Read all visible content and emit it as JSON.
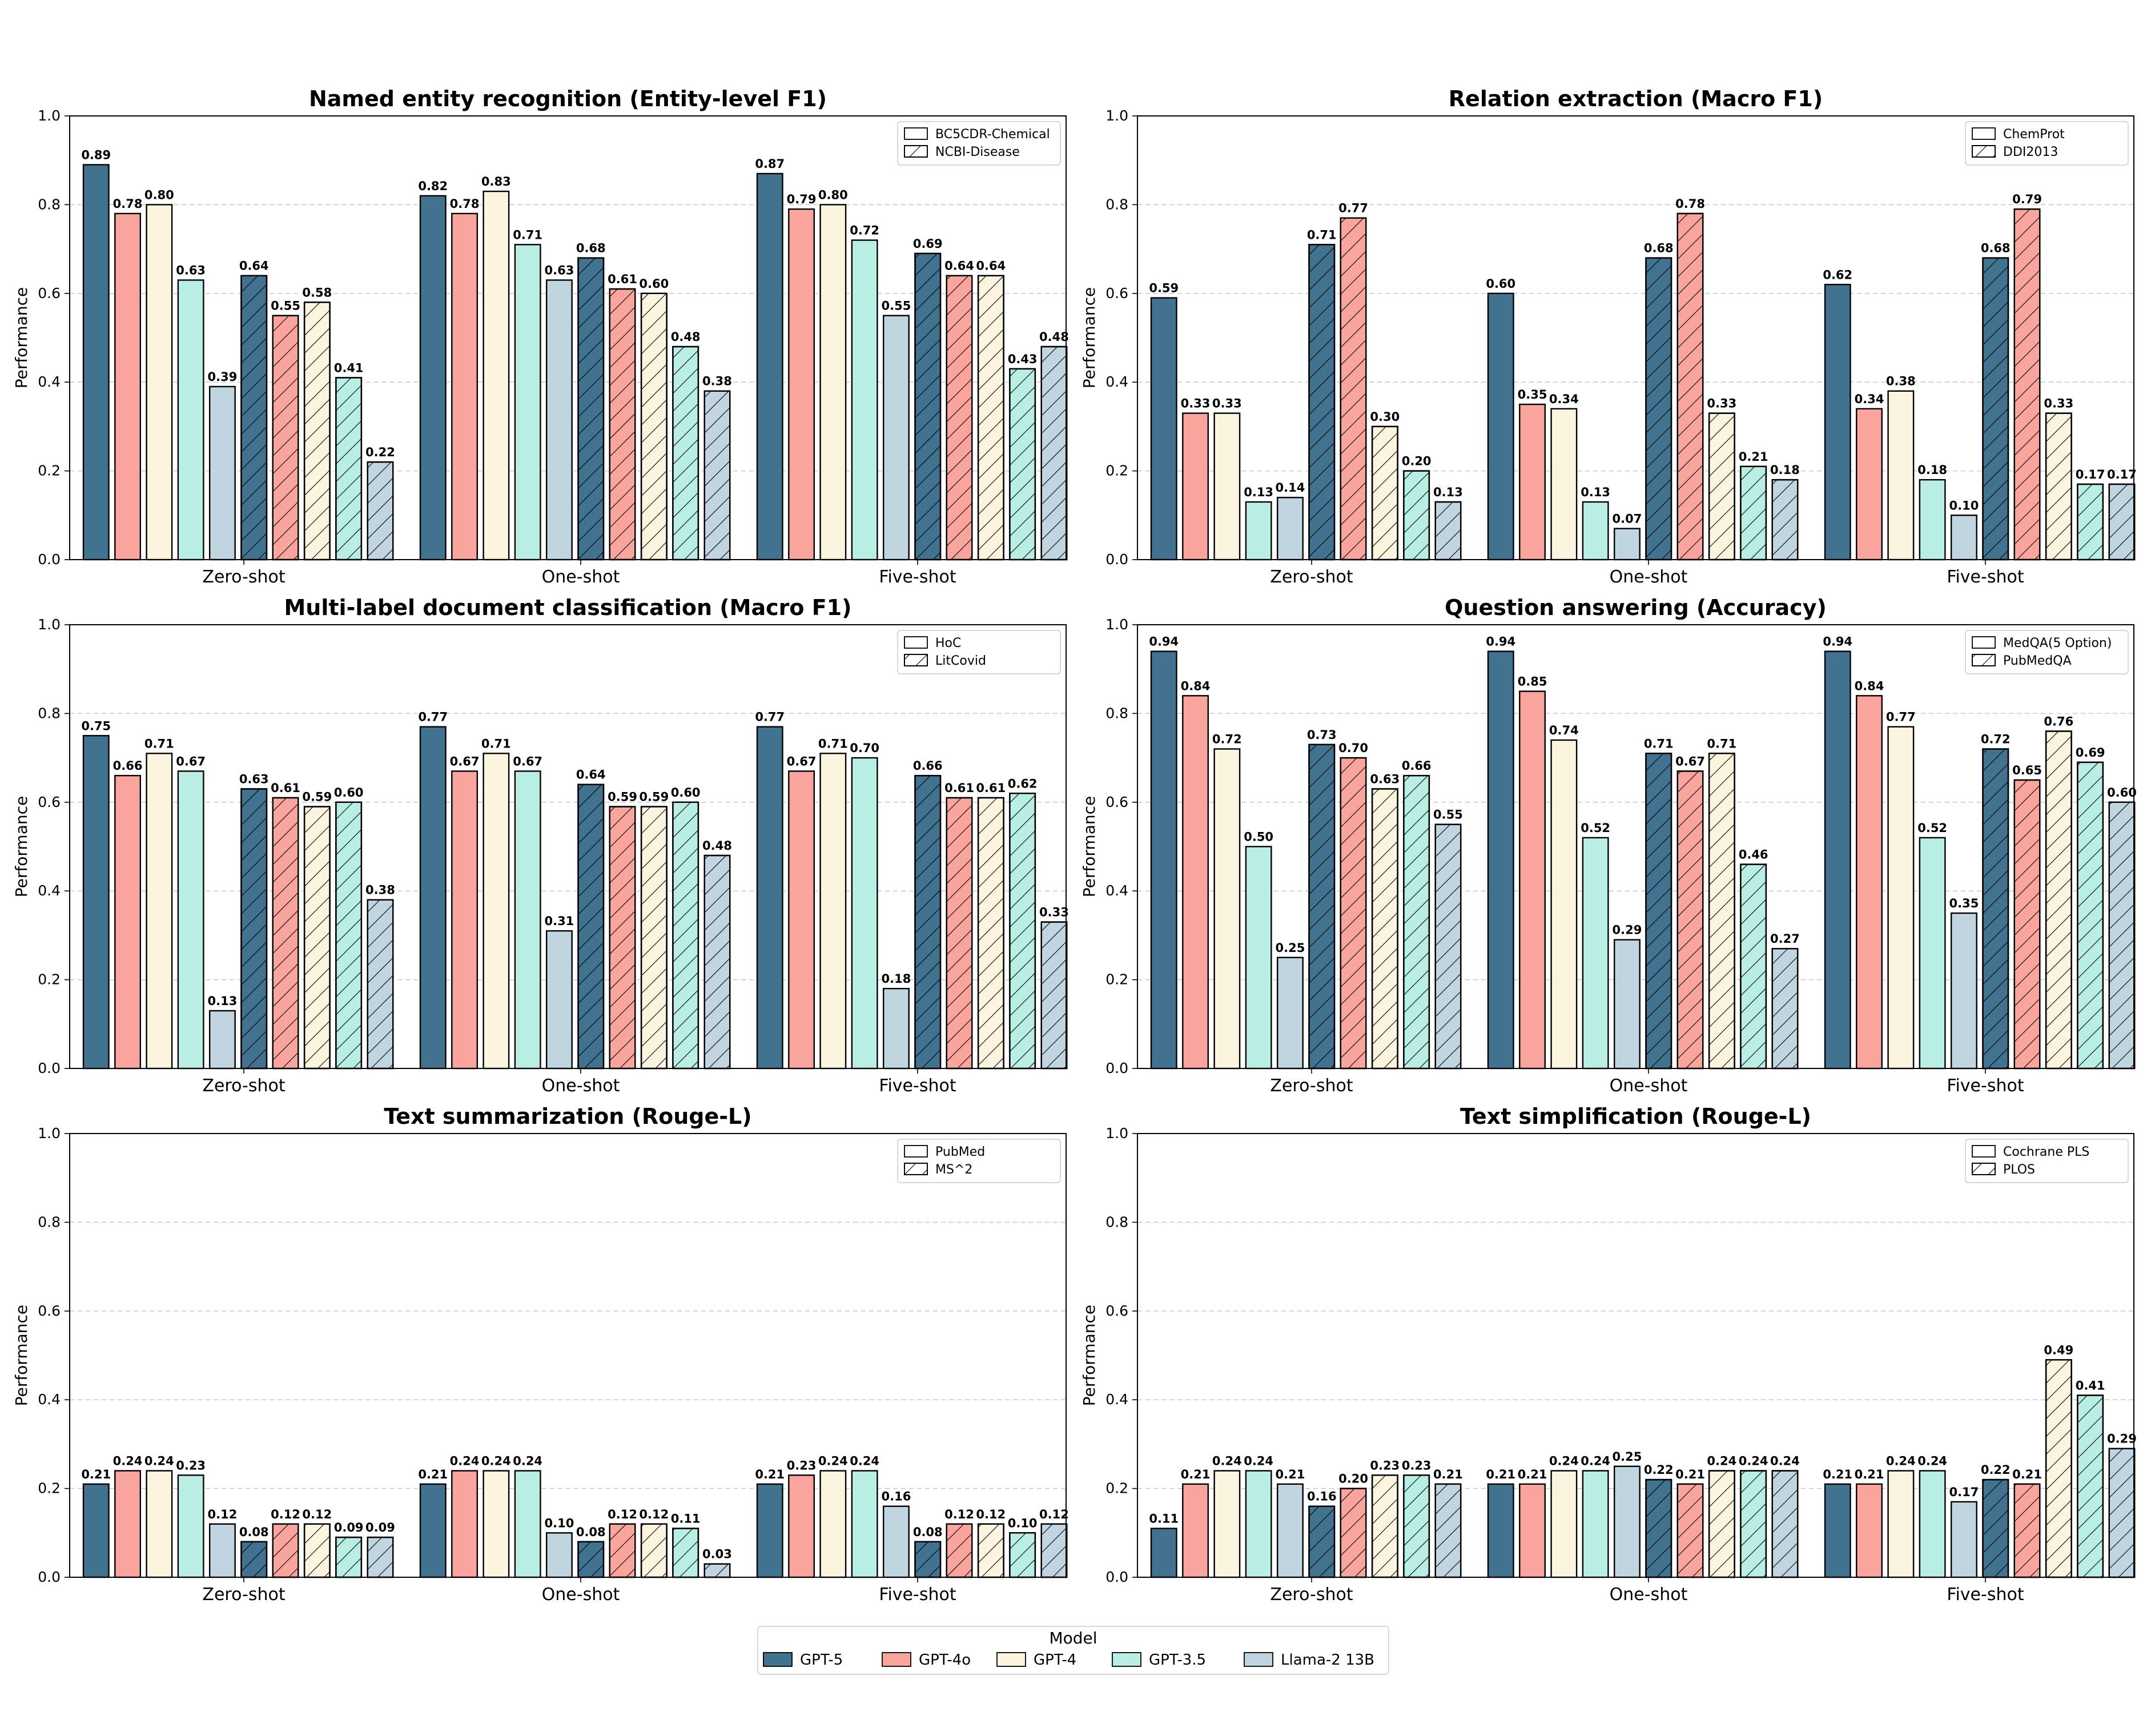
{
  "models": [
    {
      "name": "GPT-5",
      "color": "#41728f"
    },
    {
      "name": "GPT-4o",
      "color": "#f9a59d"
    },
    {
      "name": "GPT-4",
      "color": "#fbf4de"
    },
    {
      "name": "GPT-3.5",
      "color": "#b9eee4"
    },
    {
      "name": "Llama-2 13B",
      "color": "#c0d5e0"
    }
  ],
  "legend": {
    "title": "Model"
  },
  "chart_data": [
    {
      "type": "bar",
      "title": "Named entity recognition (Entity-level F1)",
      "ylabel": "Performance",
      "ylim": [
        0,
        1.0
      ],
      "yticks": [
        "0.0",
        "0.2",
        "0.4",
        "0.6",
        "0.8",
        "1.0"
      ],
      "categories": [
        "Zero-shot",
        "One-shot",
        "Five-shot"
      ],
      "datasets": [
        "BC5CDR-Chemical",
        "NCBI-Disease"
      ],
      "values": [
        [
          [
            0.89,
            0.78,
            0.8,
            0.63,
            0.39
          ],
          [
            0.64,
            0.55,
            0.58,
            0.41,
            0.22
          ]
        ],
        [
          [
            0.82,
            0.78,
            0.83,
            0.71,
            0.63
          ],
          [
            0.68,
            0.61,
            0.6,
            0.48,
            0.38
          ]
        ],
        [
          [
            0.87,
            0.79,
            0.8,
            0.72,
            0.55
          ],
          [
            0.69,
            0.64,
            0.64,
            0.43,
            0.48
          ]
        ]
      ],
      "labels": [
        [
          [
            "0.89",
            "0.78",
            "0.80",
            "0.63",
            "0.39"
          ],
          [
            "0.64",
            "0.55",
            "0.58",
            "0.41",
            "0.22"
          ]
        ],
        [
          [
            "0.82",
            "0.78",
            "0.83",
            "0.71",
            "0.63"
          ],
          [
            "0.68",
            "0.61",
            "0.60",
            "0.48",
            "0.38"
          ]
        ],
        [
          [
            "0.87",
            "0.79",
            "0.80",
            "0.72",
            "0.55"
          ],
          [
            "0.69",
            "0.64",
            "0.64",
            "0.43",
            "0.48"
          ]
        ]
      ]
    },
    {
      "type": "bar",
      "title": "Relation extraction (Macro F1)",
      "ylabel": "Performance",
      "ylim": [
        0,
        1.0
      ],
      "yticks": [
        "0.0",
        "0.2",
        "0.4",
        "0.6",
        "0.8",
        "1.0"
      ],
      "categories": [
        "Zero-shot",
        "One-shot",
        "Five-shot"
      ],
      "datasets": [
        "ChemProt",
        "DDI2013"
      ],
      "values": [
        [
          [
            0.59,
            0.33,
            0.33,
            0.13,
            0.14
          ],
          [
            0.71,
            0.77,
            0.3,
            0.2,
            0.13
          ]
        ],
        [
          [
            0.6,
            0.35,
            0.34,
            0.13,
            0.07
          ],
          [
            0.68,
            0.78,
            0.33,
            0.21,
            0.18
          ]
        ],
        [
          [
            0.62,
            0.34,
            0.38,
            0.18,
            0.1
          ],
          [
            0.68,
            0.79,
            0.33,
            0.17,
            0.17
          ]
        ]
      ],
      "labels": [
        [
          [
            "0.59",
            "0.33",
            "0.33",
            "0.13",
            "0.14"
          ],
          [
            "0.71",
            "0.77",
            "0.30",
            "0.20",
            "0.13"
          ]
        ],
        [
          [
            "0.60",
            "0.35",
            "0.34",
            "0.13",
            "0.07"
          ],
          [
            "0.68",
            "0.78",
            "0.33",
            "0.21",
            "0.18"
          ]
        ],
        [
          [
            "0.62",
            "0.34",
            "0.38",
            "0.18",
            "0.10"
          ],
          [
            "0.68",
            "0.79",
            "0.33",
            "0.17",
            "0.17"
          ]
        ]
      ]
    },
    {
      "type": "bar",
      "title": "Multi-label document classification (Macro F1)",
      "ylabel": "Performance",
      "ylim": [
        0,
        1.0
      ],
      "yticks": [
        "0.0",
        "0.2",
        "0.4",
        "0.6",
        "0.8",
        "1.0"
      ],
      "categories": [
        "Zero-shot",
        "One-shot",
        "Five-shot"
      ],
      "datasets": [
        "HoC",
        "LitCovid"
      ],
      "values": [
        [
          [
            0.75,
            0.66,
            0.71,
            0.67,
            0.13
          ],
          [
            0.63,
            0.61,
            0.59,
            0.6,
            0.38
          ]
        ],
        [
          [
            0.77,
            0.67,
            0.71,
            0.67,
            0.31
          ],
          [
            0.64,
            0.59,
            0.59,
            0.6,
            0.48
          ]
        ],
        [
          [
            0.77,
            0.67,
            0.71,
            0.7,
            0.18
          ],
          [
            0.66,
            0.61,
            0.61,
            0.62,
            0.33
          ]
        ]
      ],
      "labels": [
        [
          [
            "0.75",
            "0.66",
            "0.71",
            "0.67",
            "0.13"
          ],
          [
            "0.63",
            "0.61",
            "0.59",
            "0.60",
            "0.38"
          ]
        ],
        [
          [
            "0.77",
            "0.67",
            "0.71",
            "0.67",
            "0.31"
          ],
          [
            "0.64",
            "0.59",
            "0.59",
            "0.60",
            "0.48"
          ]
        ],
        [
          [
            "0.77",
            "0.67",
            "0.71",
            "0.70",
            "0.18"
          ],
          [
            "0.66",
            "0.61",
            "0.61",
            "0.62",
            "0.33"
          ]
        ]
      ]
    },
    {
      "type": "bar",
      "title": "Question answering (Accuracy)",
      "ylabel": "Performance",
      "ylim": [
        0,
        1.0
      ],
      "yticks": [
        "0.0",
        "0.2",
        "0.4",
        "0.6",
        "0.8",
        "1.0"
      ],
      "categories": [
        "Zero-shot",
        "One-shot",
        "Five-shot"
      ],
      "datasets": [
        "MedQA(5 Option)",
        "PubMedQA"
      ],
      "values": [
        [
          [
            0.94,
            0.84,
            0.72,
            0.5,
            0.25
          ],
          [
            0.73,
            0.7,
            0.63,
            0.66,
            0.55
          ]
        ],
        [
          [
            0.94,
            0.85,
            0.74,
            0.52,
            0.29
          ],
          [
            0.71,
            0.67,
            0.71,
            0.46,
            0.27
          ]
        ],
        [
          [
            0.94,
            0.84,
            0.77,
            0.52,
            0.35
          ],
          [
            0.72,
            0.65,
            0.76,
            0.69,
            0.6
          ]
        ]
      ],
      "labels": [
        [
          [
            "0.94",
            "0.84",
            "0.72",
            "0.50",
            "0.25"
          ],
          [
            "0.73",
            "0.70",
            "0.63",
            "0.66",
            "0.55"
          ]
        ],
        [
          [
            "0.94",
            "0.85",
            "0.74",
            "0.52",
            "0.29"
          ],
          [
            "0.71",
            "0.67",
            "0.71",
            "0.46",
            "0.27"
          ]
        ],
        [
          [
            "0.94",
            "0.84",
            "0.77",
            "0.52",
            "0.35"
          ],
          [
            "0.72",
            "0.65",
            "0.76",
            "0.69",
            "0.60"
          ]
        ]
      ]
    },
    {
      "type": "bar",
      "title": "Text summarization (Rouge-L)",
      "ylabel": "Performance",
      "ylim": [
        0,
        1.0
      ],
      "yticks": [
        "0.0",
        "0.2",
        "0.4",
        "0.6",
        "0.8",
        "1.0"
      ],
      "categories": [
        "Zero-shot",
        "One-shot",
        "Five-shot"
      ],
      "datasets": [
        "PubMed",
        "MS^2"
      ],
      "values": [
        [
          [
            0.21,
            0.24,
            0.24,
            0.23,
            0.12
          ],
          [
            0.08,
            0.12,
            0.12,
            0.09,
            0.09
          ]
        ],
        [
          [
            0.21,
            0.24,
            0.24,
            0.24,
            0.1
          ],
          [
            0.08,
            0.12,
            0.12,
            0.11,
            0.03
          ]
        ],
        [
          [
            0.21,
            0.23,
            0.24,
            0.24,
            0.16
          ],
          [
            0.08,
            0.12,
            0.12,
            0.1,
            0.12
          ]
        ]
      ],
      "labels": [
        [
          [
            "0.21",
            "0.24",
            "0.24",
            "0.23",
            "0.12"
          ],
          [
            "0.08",
            "0.12",
            "0.12",
            "0.09",
            "0.09"
          ]
        ],
        [
          [
            "0.21",
            "0.24",
            "0.24",
            "0.24",
            "0.10"
          ],
          [
            "0.08",
            "0.12",
            "0.12",
            "0.11",
            "0.03"
          ]
        ],
        [
          [
            "0.21",
            "0.23",
            "0.24",
            "0.24",
            "0.16"
          ],
          [
            "0.08",
            "0.12",
            "0.12",
            "0.10",
            "0.12"
          ]
        ]
      ]
    },
    {
      "type": "bar",
      "title": "Text simplification (Rouge-L)",
      "ylabel": "Performance",
      "ylim": [
        0,
        1.0
      ],
      "yticks": [
        "0.0",
        "0.2",
        "0.4",
        "0.6",
        "0.8",
        "1.0"
      ],
      "categories": [
        "Zero-shot",
        "One-shot",
        "Five-shot"
      ],
      "datasets": [
        "Cochrane PLS",
        "PLOS"
      ],
      "values": [
        [
          [
            0.11,
            0.21,
            0.24,
            0.24,
            0.21
          ],
          [
            0.16,
            0.2,
            0.23,
            0.23,
            0.21
          ]
        ],
        [
          [
            0.21,
            0.21,
            0.24,
            0.24,
            0.25
          ],
          [
            0.22,
            0.21,
            0.24,
            0.24,
            0.24
          ]
        ],
        [
          [
            0.21,
            0.21,
            0.24,
            0.24,
            0.17
          ],
          [
            0.22,
            0.21,
            0.49,
            0.41,
            0.29
          ]
        ]
      ],
      "labels": [
        [
          [
            "0.11",
            "0.21",
            "0.24",
            "0.24",
            "0.21"
          ],
          [
            "0.16",
            "0.20",
            "0.23",
            "0.23",
            "0.21"
          ]
        ],
        [
          [
            "0.21",
            "0.21",
            "0.24",
            "0.24",
            "0.25"
          ],
          [
            "0.22",
            "0.21",
            "0.24",
            "0.24",
            "0.24"
          ]
        ],
        [
          [
            "0.21",
            "0.21",
            "0.24",
            "0.24",
            "0.17"
          ],
          [
            "0.22",
            "0.21",
            "0.49",
            "0.41",
            "0.29"
          ]
        ]
      ]
    }
  ]
}
